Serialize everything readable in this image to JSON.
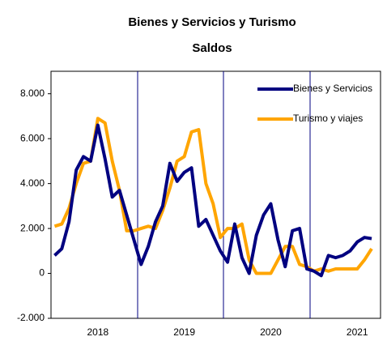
{
  "chart_data": {
    "type": "line",
    "title": "Bienes y Servicios y Turismo",
    "subtitle": "Saldos",
    "categories": [
      null,
      null,
      null,
      null,
      null,
      null,
      "2018",
      null,
      null,
      null,
      null,
      null,
      null,
      null,
      null,
      null,
      null,
      null,
      "2019",
      null,
      null,
      null,
      null,
      null,
      null,
      null,
      null,
      null,
      null,
      null,
      "2020",
      null,
      null,
      null,
      null,
      null,
      null,
      null,
      null,
      null,
      null,
      null,
      "2021",
      null,
      null
    ],
    "series": [
      {
        "name": "Bienes y Servicios",
        "color": "#000080",
        "values": [
          800,
          1100,
          2300,
          4600,
          5200,
          5000,
          6600,
          5100,
          3400,
          3700,
          2600,
          1500,
          400,
          1200,
          2300,
          3000,
          4900,
          4100,
          4500,
          4700,
          2100,
          2400,
          1700,
          1000,
          500,
          2200,
          700,
          0,
          1700,
          2600,
          3100,
          1500,
          300,
          1900,
          2000,
          200,
          100,
          -100,
          800,
          700,
          800,
          1000,
          1400,
          1600,
          1550
        ]
      },
      {
        "name": "Turismo y viajes",
        "color": "#ffa500",
        "values": [
          2100,
          2200,
          2900,
          4000,
          4900,
          5000,
          6900,
          6700,
          5000,
          3700,
          1900,
          1900,
          2000,
          2100,
          2000,
          2800,
          3800,
          5000,
          5200,
          6300,
          6400,
          4000,
          3100,
          1600,
          2000,
          2000,
          2200,
          600,
          0,
          0,
          0,
          600,
          1200,
          1200,
          400,
          300,
          100,
          200,
          100,
          200,
          200,
          200,
          200,
          600,
          1100
        ]
      }
    ],
    "ylim": [
      -2000,
      9000
    ],
    "yticks": [
      {
        "value": -2000,
        "label": "-2.000"
      },
      0,
      {
        "value": 2000,
        "label": "2.000"
      },
      {
        "value": 4000,
        "label": "4.000"
      },
      {
        "value": 6000,
        "label": "6.000"
      },
      {
        "value": 8000,
        "label": "8.000"
      }
    ],
    "legend": "upper right"
  }
}
